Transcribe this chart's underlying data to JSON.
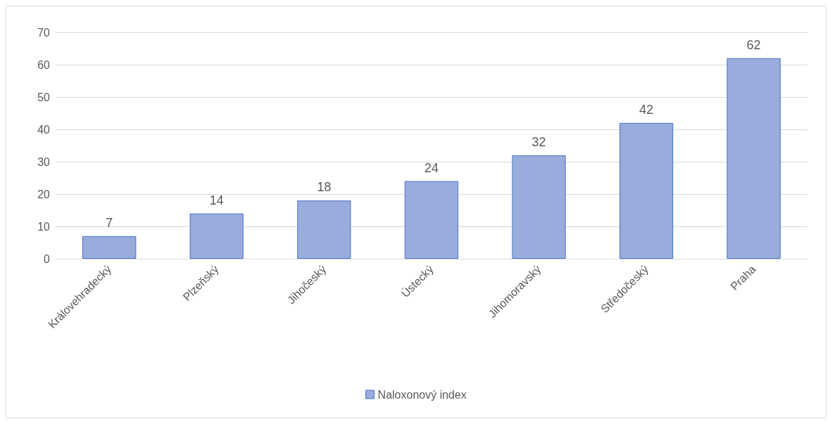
{
  "chart_data": {
    "type": "bar",
    "categories": [
      "Královehradecký",
      "Plzeňský",
      "Jihočeský",
      "Ústecký",
      "Jihomoravský",
      "Středočeský",
      "Praha"
    ],
    "series": [
      {
        "name": "Naloxonový index",
        "color": "#9aacdc",
        "values": [
          7,
          14,
          18,
          24,
          32,
          42,
          62
        ]
      }
    ],
    "ylim": [
      0,
      70
    ],
    "yticks": [
      0,
      10,
      20,
      30,
      40,
      50,
      60,
      70
    ],
    "grid": "y",
    "legend": "bottom",
    "data_labels": true
  }
}
